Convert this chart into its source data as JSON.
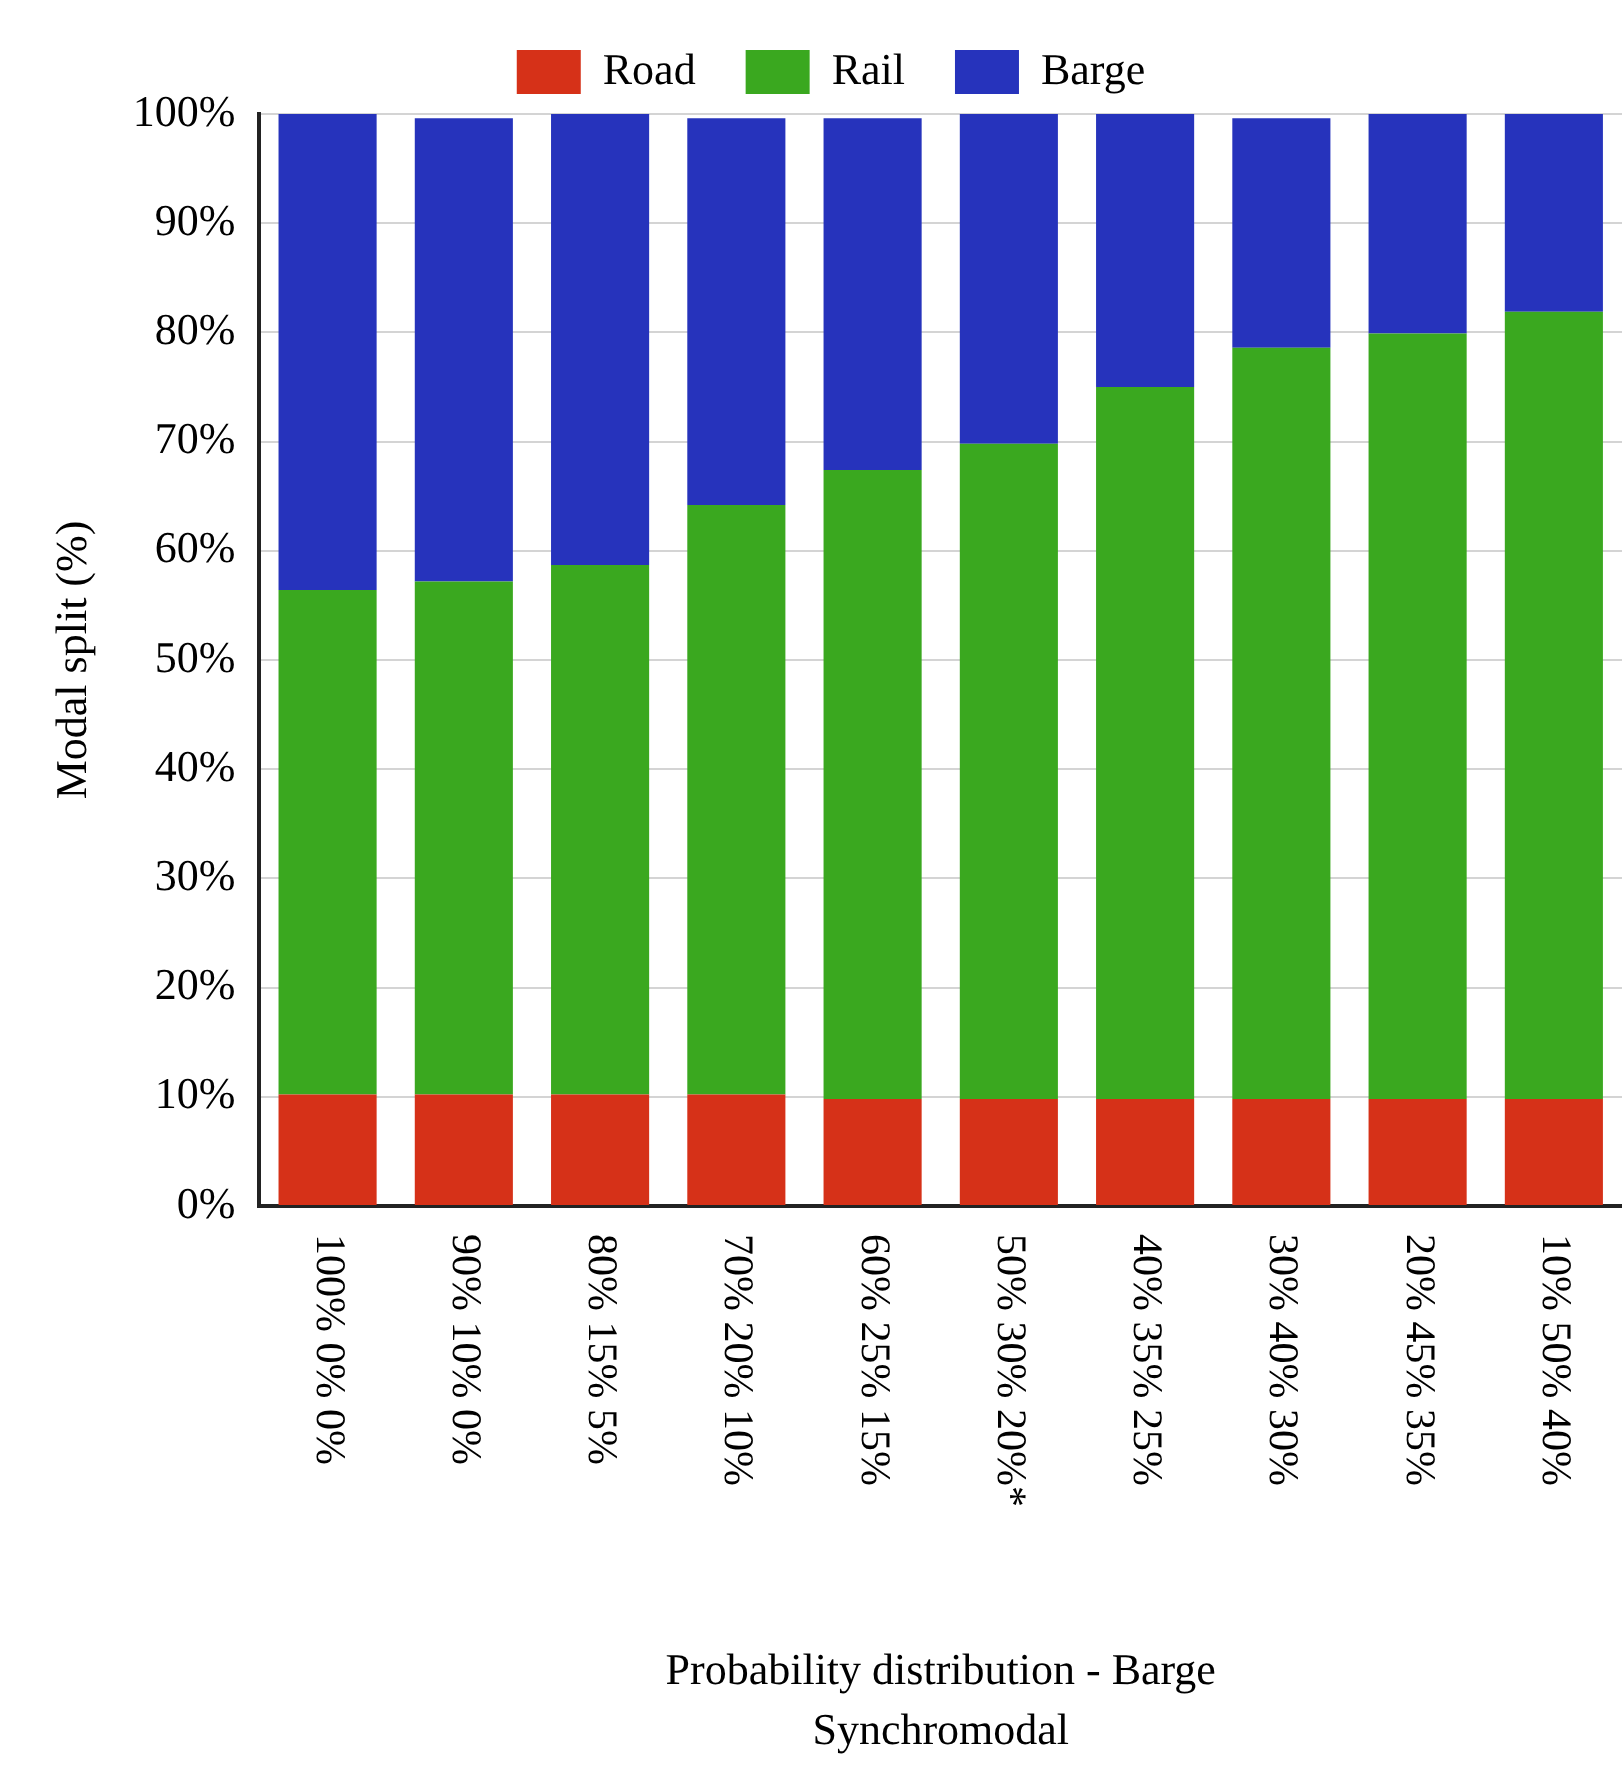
{
  "chart_data": {
    "type": "bar",
    "stacked": true,
    "xlabel": "Probability distribution - Barge\nSynchromodal",
    "ylabel": "Modal split (%)",
    "categories": [
      "100% 0% 0%",
      "90% 10% 0%",
      "80% 15% 5%",
      "70% 20% 10%",
      "60% 25% 15%",
      "50% 30% 20%*",
      "40% 35% 25%",
      "30% 40% 30%",
      "20% 45% 35%",
      "10% 50% 40%"
    ],
    "series": [
      {
        "name": "Road",
        "color": "#d63118",
        "values": [
          10.2,
          10.2,
          10.2,
          10.2,
          9.8,
          9.8,
          9.8,
          9.8,
          9.8,
          9.8
        ]
      },
      {
        "name": "Rail",
        "color": "#3aa81f",
        "values": [
          46.2,
          47.0,
          48.5,
          54.0,
          57.6,
          60.0,
          65.2,
          68.8,
          70.1,
          72.1
        ]
      },
      {
        "name": "Barge",
        "color": "#2633bc",
        "values": [
          43.6,
          42.4,
          41.3,
          35.4,
          32.2,
          30.2,
          25.0,
          21.0,
          20.1,
          18.1
        ]
      }
    ],
    "ylim": [
      0,
      100
    ],
    "yticks": [
      {
        "value": 0,
        "label": "0%"
      },
      {
        "value": 10,
        "label": "10%"
      },
      {
        "value": 20,
        "label": "20%"
      },
      {
        "value": 30,
        "label": "30%"
      },
      {
        "value": 40,
        "label": "40%"
      },
      {
        "value": 50,
        "label": "50%"
      },
      {
        "value": 60,
        "label": "60%"
      },
      {
        "value": 70,
        "label": "70%"
      },
      {
        "value": 80,
        "label": "80%"
      },
      {
        "value": 90,
        "label": "90%"
      },
      {
        "value": 100,
        "label": "100%"
      }
    ],
    "grid": "y",
    "legend": "top"
  }
}
